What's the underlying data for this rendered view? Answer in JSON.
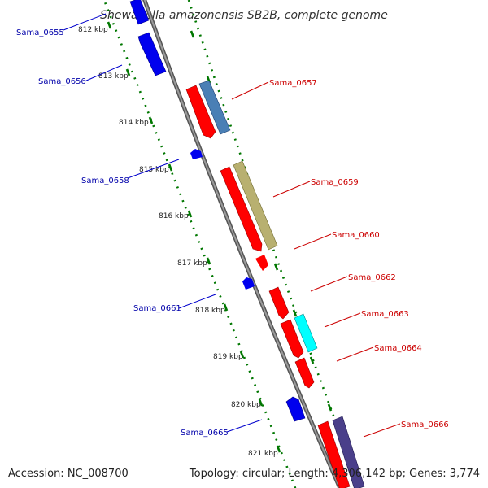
{
  "title": "Shewanella amazonensis SB2B, complete genome",
  "footer": {
    "accession": "Accession: NC_008700",
    "summary": "Topology: circular; Length: 4,306,142 bp; Genes: 3,774"
  },
  "colors": {
    "backbone": "#808080",
    "ticks": "#007700",
    "reverse_gene": "#0000ee",
    "forward_gene": "#ff0000",
    "reverse_label": "#0000aa",
    "forward_label": "#cc0000"
  },
  "kbp_marks": [
    "812 kbp",
    "813 kbp",
    "814 kbp",
    "815 kbp",
    "816 kbp",
    "817 kbp",
    "818 kbp",
    "819 kbp",
    "820 kbp",
    "821 kbp"
  ],
  "labels": {
    "reverse": [
      "Sama_0655",
      "Sama_0656",
      "Sama_0658",
      "Sama_0661",
      "Sama_0665"
    ],
    "forward": [
      "Sama_0657",
      "Sama_0659",
      "Sama_0660",
      "Sama_0662",
      "Sama_0663",
      "Sama_0664",
      "Sama_0666"
    ]
  }
}
